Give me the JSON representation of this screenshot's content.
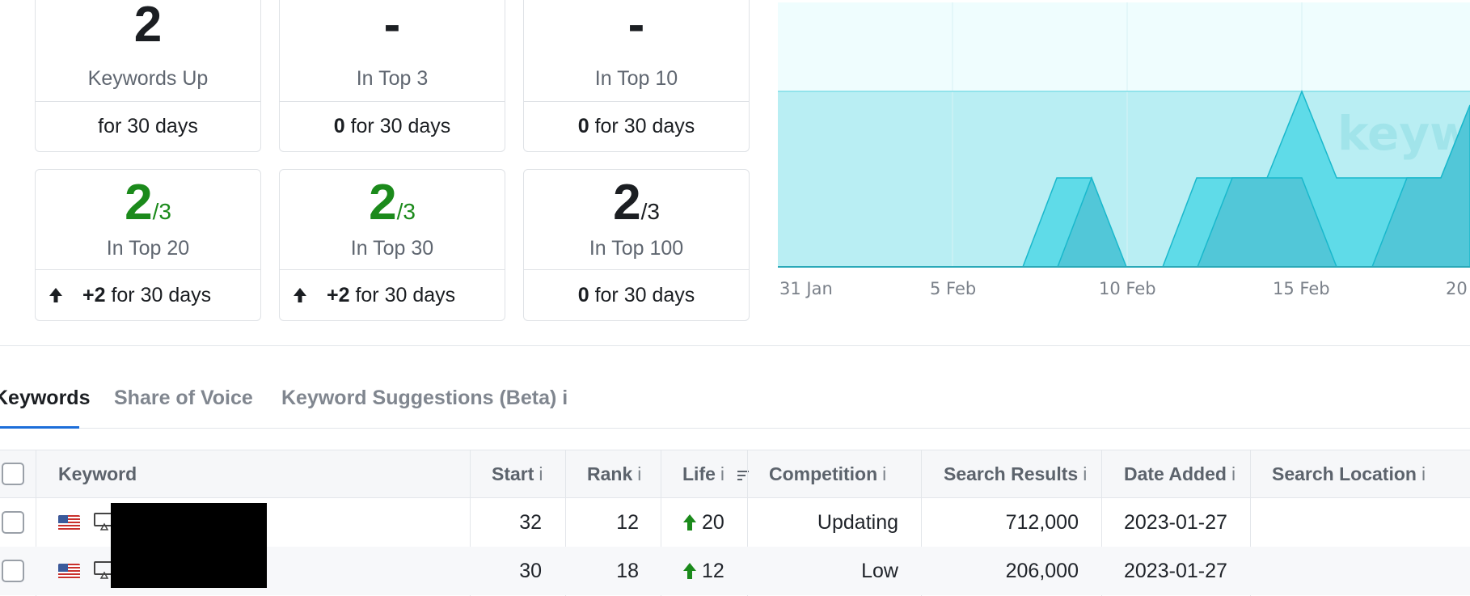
{
  "stat_cards": [
    {
      "value": "2",
      "denom": "",
      "label": "Keywords Up",
      "foot_bold": "",
      "foot_text": "for 30 days",
      "trend": "",
      "color": "dark"
    },
    {
      "value": "-",
      "denom": "",
      "label": "In Top 3",
      "foot_bold": "0",
      "foot_text": " for 30 days",
      "trend": "",
      "color": "dark"
    },
    {
      "value": "-",
      "denom": "",
      "label": "In Top 10",
      "foot_bold": "0",
      "foot_text": " for 30 days",
      "trend": "",
      "color": "dark"
    },
    {
      "value": "2",
      "denom": "/3",
      "label": "In Top 20",
      "foot_bold": "+2",
      "foot_text": " for 30 days",
      "trend": "up",
      "color": "green"
    },
    {
      "value": "2",
      "denom": "/3",
      "label": "In Top 30",
      "foot_bold": "+2",
      "foot_text": " for 30 days",
      "trend": "up",
      "color": "green"
    },
    {
      "value": "2",
      "denom": "/3",
      "label": "In Top 100",
      "foot_bold": "0",
      "foot_text": " for 30 days",
      "trend": "",
      "color": "dark"
    }
  ],
  "chart": {
    "watermark": "keyword.com",
    "x_labels": [
      "31 Jan",
      "5 Feb",
      "10 Feb",
      "15 Feb",
      "20"
    ],
    "colors": {
      "band_light": "#effdfe",
      "band_mid": "#b9eef3",
      "area": "#5fdbe8",
      "area_dark": "#52c7d8",
      "line": "#19b8cc"
    }
  },
  "tabs": [
    {
      "label": "Keywords",
      "active": true
    },
    {
      "label": "Share of Voice",
      "active": false
    },
    {
      "label": "Keyword Suggestions (Beta) i",
      "active": false
    }
  ],
  "table": {
    "columns": [
      {
        "label": "Keyword",
        "info": ""
      },
      {
        "label": "Start",
        "info": "i"
      },
      {
        "label": "Rank",
        "info": "i"
      },
      {
        "label": "Life",
        "info": "i"
      },
      {
        "label": "Competition",
        "info": "i"
      },
      {
        "label": "Search Results",
        "info": "i"
      },
      {
        "label": "Date Added",
        "info": "i"
      },
      {
        "label": "Search Location",
        "info": "i"
      }
    ],
    "rows": [
      {
        "start": "32",
        "rank": "12",
        "life": "20",
        "competition": "Updating",
        "search_results": "712,000",
        "date_added": "2023-01-27",
        "location": ""
      },
      {
        "start": "30",
        "rank": "18",
        "life": "12",
        "competition": "Low",
        "search_results": "206,000",
        "date_added": "2023-01-27",
        "location": ""
      }
    ]
  },
  "icons": {
    "flag": "us-flag-icon",
    "device": "desktop-icon",
    "trend": "arrow-up-icon",
    "sort": "sort-icon"
  }
}
